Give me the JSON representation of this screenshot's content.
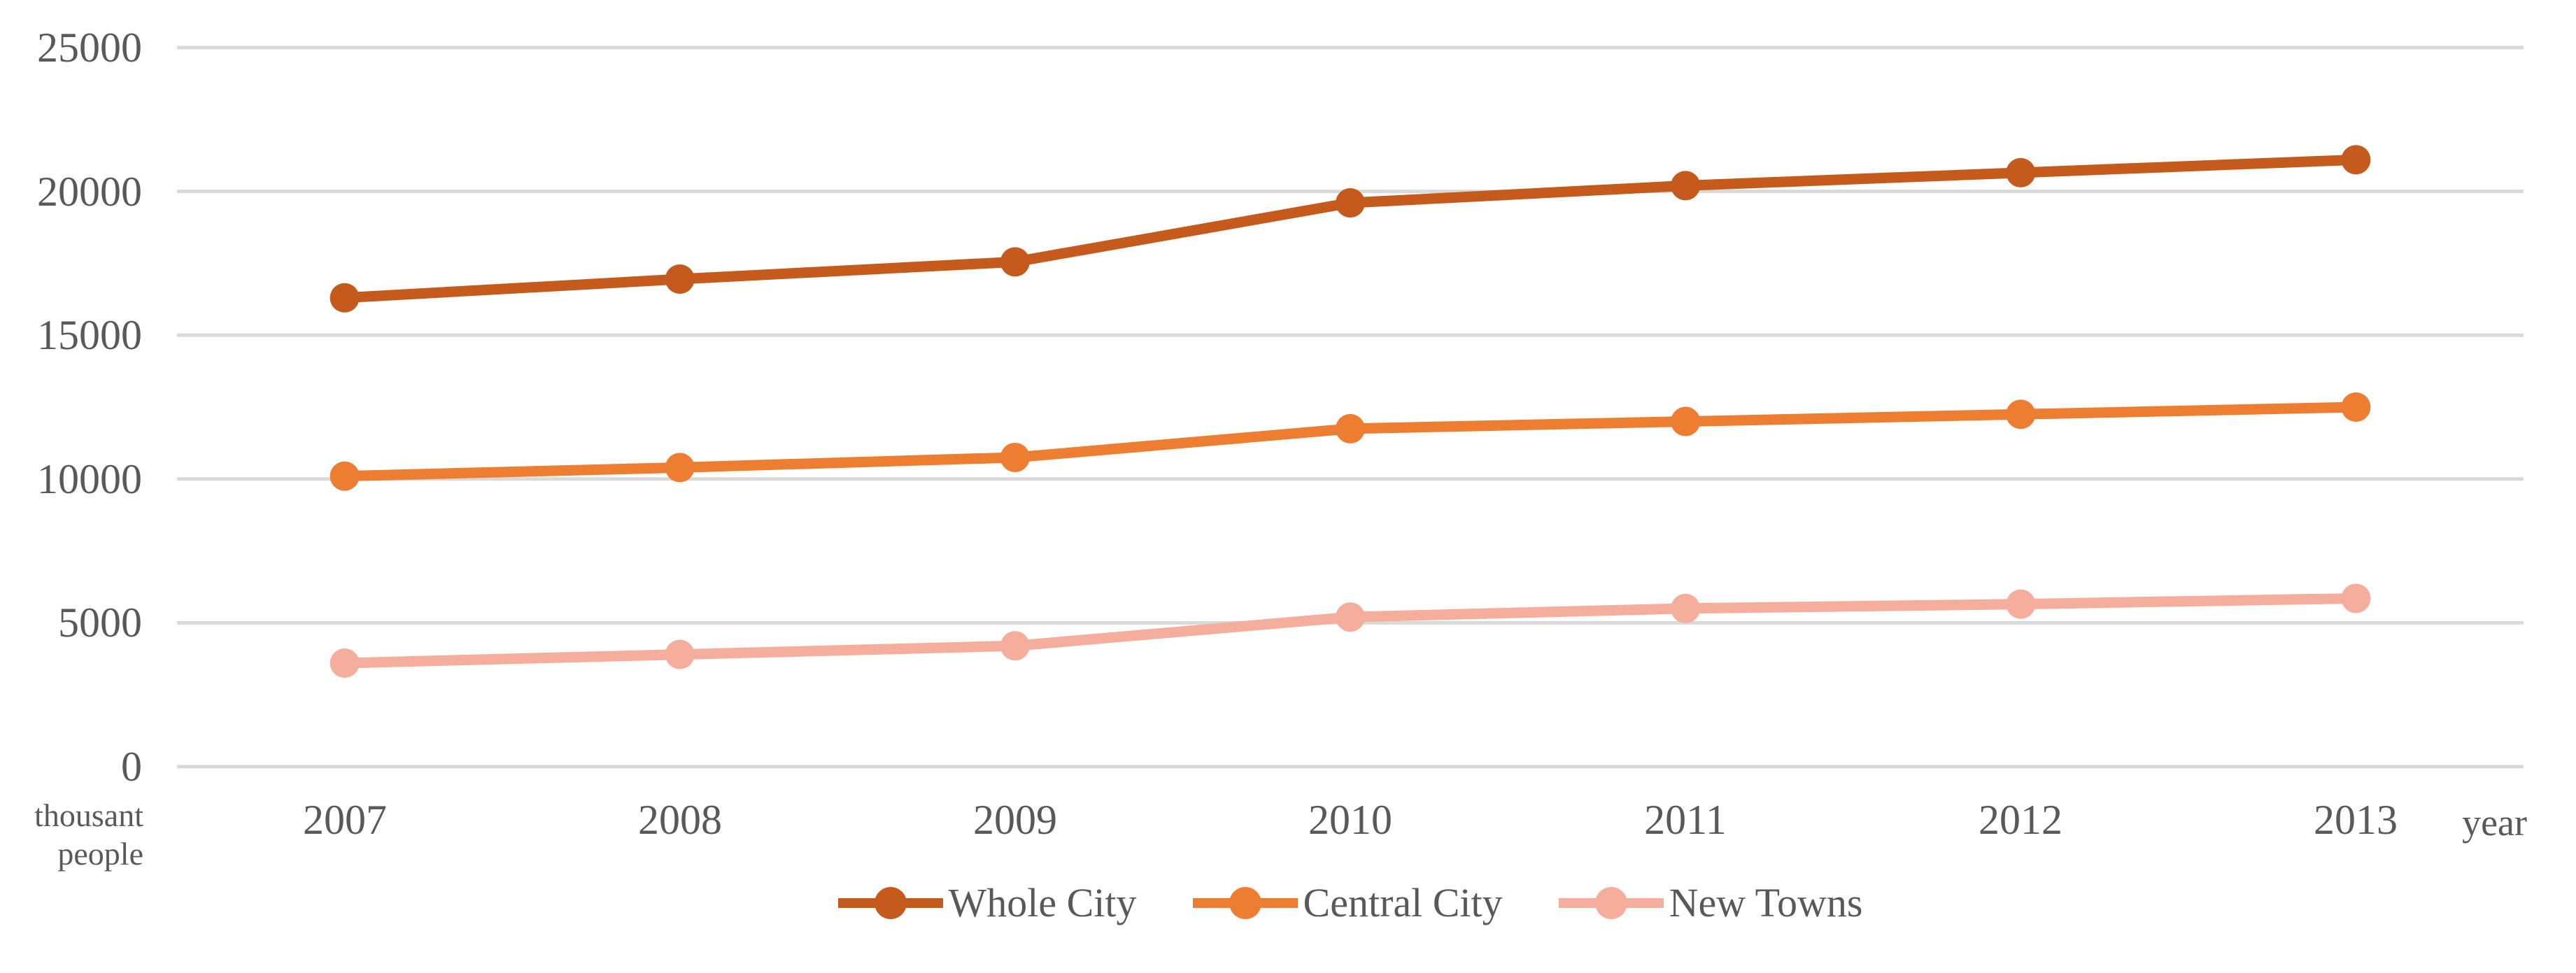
{
  "chart_data": {
    "type": "line",
    "title": "",
    "xlabel": "year",
    "y_axis_unit_lines": [
      "thousant",
      "people"
    ],
    "categories": [
      "2007",
      "2008",
      "2009",
      "2010",
      "2011",
      "2012",
      "2013"
    ],
    "y_ticks": [
      25000,
      20000,
      15000,
      10000,
      5000,
      0
    ],
    "ylim": [
      0,
      25000
    ],
    "grid": true,
    "legend_position": "bottom",
    "colors": {
      "gridline": "#D9D9D9",
      "text": "#595959",
      "background": "#FFFFFF"
    },
    "series": [
      {
        "name": "Whole City",
        "color": "#C45B1C",
        "values": [
          16300,
          16950,
          17550,
          19600,
          20200,
          20650,
          21100
        ]
      },
      {
        "name": "Central City",
        "color": "#ED7D31",
        "values": [
          10100,
          10400,
          10750,
          11750,
          12000,
          12250,
          12500
        ]
      },
      {
        "name": "New Towns",
        "color": "#F4AE9B",
        "values": [
          3600,
          3900,
          4200,
          5200,
          5500,
          5650,
          5850
        ]
      }
    ]
  }
}
